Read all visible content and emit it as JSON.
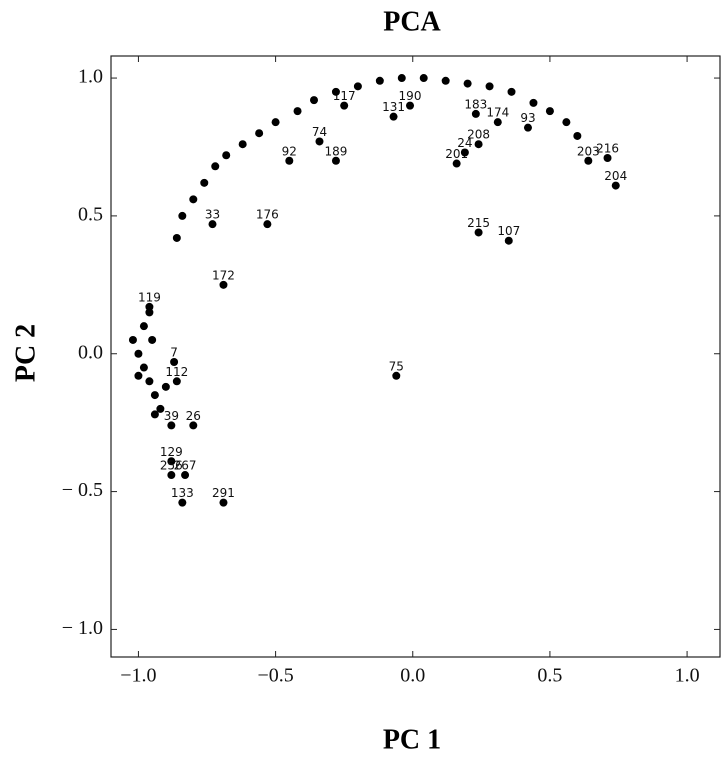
{
  "chart_data": {
    "type": "scatter",
    "title": "PCA",
    "x_label": "PC 1",
    "y_label": "PC 2",
    "x": [
      0.74,
      0.71,
      0.64,
      0.24,
      0.35,
      -0.06,
      -0.69,
      -0.53,
      -0.73,
      -0.45,
      -0.34,
      -0.28,
      -0.07,
      -0.01,
      0.23,
      0.31,
      0.42,
      0.24,
      0.16,
      0.19,
      -0.25,
      -0.87,
      -0.8,
      -0.88,
      -0.88,
      -0.88,
      -0.83,
      -0.84,
      -0.69,
      -0.96,
      -0.86,
      -0.86,
      -0.84,
      -0.8,
      -0.76,
      -0.72,
      -0.68,
      -0.62,
      -0.56,
      -0.5,
      -0.42,
      -0.36,
      -0.28,
      -0.2,
      -0.12,
      -0.04,
      0.04,
      0.12,
      0.2,
      0.28,
      0.36,
      0.44,
      0.5,
      0.56,
      0.6,
      -1.02,
      -1.0,
      -0.98,
      -0.96,
      -0.94,
      -0.92,
      -0.98,
      -0.96,
      -0.94,
      -1.0,
      -0.95,
      -0.9
    ],
    "values": [
      0.61,
      0.71,
      0.7,
      0.44,
      0.41,
      -0.08,
      0.25,
      0.47,
      0.47,
      0.7,
      0.77,
      0.7,
      0.86,
      0.9,
      0.87,
      0.84,
      0.82,
      0.76,
      0.69,
      0.73,
      0.9,
      -0.03,
      -0.26,
      -0.26,
      -0.39,
      -0.44,
      -0.44,
      -0.54,
      -0.54,
      0.17,
      -0.1,
      0.42,
      0.5,
      0.56,
      0.62,
      0.68,
      0.72,
      0.76,
      0.8,
      0.84,
      0.88,
      0.92,
      0.95,
      0.97,
      0.99,
      1.0,
      1.0,
      0.99,
      0.98,
      0.97,
      0.95,
      0.91,
      0.88,
      0.84,
      0.79,
      0.05,
      0.0,
      -0.05,
      -0.1,
      -0.15,
      -0.2,
      0.1,
      0.15,
      -0.22,
      -0.08,
      0.05,
      -0.12
    ],
    "point_labels": [
      "204",
      "216",
      "203",
      "215",
      "107",
      "75",
      "172",
      "176",
      "33",
      "92",
      "74",
      "189",
      "131",
      "190",
      "183",
      "174",
      "93",
      "208",
      "201",
      "24",
      "117",
      "7",
      "26",
      "39",
      "129",
      "256",
      "267",
      "133",
      "291",
      "119",
      "112",
      null,
      null,
      null,
      null,
      null,
      null,
      null,
      null,
      null,
      null,
      null,
      null,
      null,
      null,
      null,
      null,
      null,
      null,
      null,
      null,
      null,
      null,
      null,
      null,
      null,
      null,
      null,
      null,
      null,
      null,
      null,
      null,
      null,
      null,
      null,
      null
    ],
    "color": "#000000",
    "xlim": [
      -1.1,
      1.12
    ],
    "ylim": [
      -1.1,
      1.08
    ],
    "xticks": [
      {
        "value": -1.0,
        "label": "−1.0"
      },
      {
        "value": -0.5,
        "label": "−0.5"
      },
      {
        "value": 0.0,
        "label": "0.0"
      },
      0.5,
      {
        "value": 1.0,
        "label": "1.0"
      }
    ],
    "yticks": [
      {
        "value": -1.0,
        "label": "− 1.0"
      },
      {
        "value": -0.5,
        "label": "− 0.5"
      },
      {
        "value": 0.0,
        "label": "0.0"
      },
      0.5,
      {
        "value": 1.0,
        "label": "1.0"
      }
    ]
  }
}
